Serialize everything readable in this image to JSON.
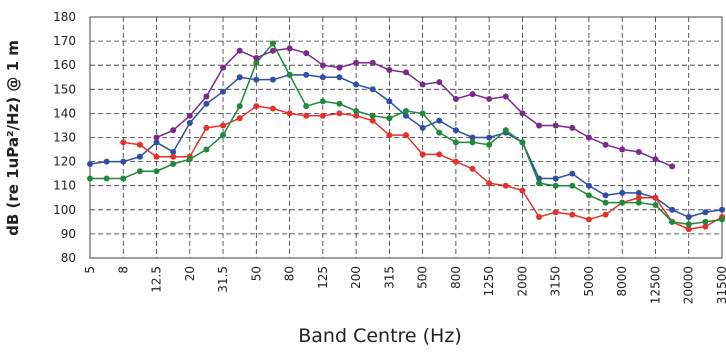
{
  "chart_data": {
    "type": "line",
    "xlabel": "Band Centre (Hz)",
    "ylabel": "dB (re 1uPa²/Hz) @ 1 m",
    "categories": [
      "5",
      null,
      "8",
      null,
      "12.5",
      null,
      "20",
      null,
      "31.5",
      null,
      "50",
      null,
      "80",
      null,
      "125",
      null,
      "200",
      null,
      "315",
      null,
      "500",
      null,
      "800",
      null,
      "1250",
      null,
      "2000",
      null,
      "3150",
      null,
      "5000",
      null,
      "8000",
      null,
      "12500",
      null,
      "20000",
      null,
      "31500"
    ],
    "series": [
      {
        "color": "#2f4ea8",
        "values": [
          119,
          120,
          120,
          122,
          128,
          124,
          136,
          144,
          149,
          155,
          154,
          154,
          156,
          156,
          155,
          155,
          152,
          150,
          145,
          139,
          134,
          137,
          133,
          130,
          130,
          132,
          128,
          113,
          113,
          115,
          110,
          106,
          107,
          107,
          105,
          100,
          97,
          99,
          100
        ]
      },
      {
        "color": "#e8302a",
        "values": [
          null,
          null,
          128,
          127,
          122,
          122,
          122,
          134,
          135,
          138,
          143,
          142,
          140,
          139,
          139,
          140,
          139,
          137,
          131,
          131,
          123,
          123,
          120,
          117,
          111,
          110,
          108,
          97,
          99,
          98,
          96,
          98,
          103,
          105,
          105,
          95,
          92,
          93,
          97
        ]
      },
      {
        "color": "#1e8a3a",
        "values": [
          113,
          113,
          113,
          116,
          116,
          119,
          121,
          125,
          131,
          143,
          161,
          169,
          156,
          143,
          145,
          144,
          141,
          139,
          138,
          141,
          140,
          132,
          128,
          128,
          127,
          133,
          128,
          111,
          110,
          110,
          106,
          103,
          103,
          103,
          102,
          95,
          94,
          95,
          96
        ]
      },
      {
        "color": "#7b2a8c",
        "values": [
          null,
          null,
          null,
          null,
          130,
          133,
          139,
          147,
          159,
          166,
          163,
          166,
          167,
          165,
          160,
          159,
          161,
          161,
          158,
          157,
          152,
          153,
          146,
          148,
          146,
          147,
          140,
          135,
          135,
          134,
          130,
          127,
          125,
          124,
          121,
          118,
          null,
          null,
          null
        ]
      }
    ],
    "ylim": [
      80,
      180
    ],
    "yticks": [
      80,
      90,
      100,
      110,
      120,
      130,
      140,
      150,
      160,
      170,
      180
    ],
    "grid": true
  }
}
